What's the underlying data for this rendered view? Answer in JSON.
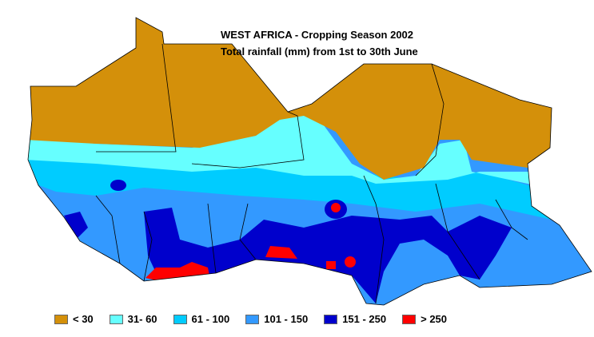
{
  "title": {
    "line1": "WEST AFRICA - Cropping Season 2002",
    "line2": "Total rainfall (mm) from 1st to 30th June"
  },
  "legend": [
    {
      "label": "< 30",
      "color": "#D4900A"
    },
    {
      "label": "31- 60",
      "color": "#66FFFF"
    },
    {
      "label": "61 - 100",
      "color": "#00CCFF"
    },
    {
      "label": "101 - 150",
      "color": "#3399FF"
    },
    {
      "label": "151 - 250",
      "color": "#0000CC"
    },
    {
      "label": "> 250",
      "color": "#FF0000"
    }
  ]
}
